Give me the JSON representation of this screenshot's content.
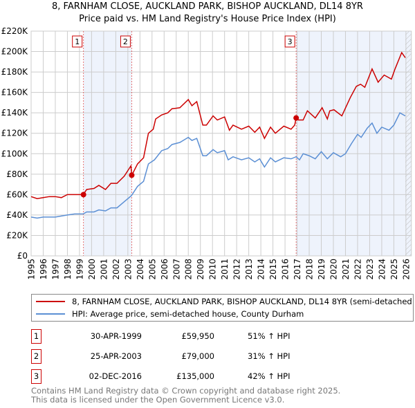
{
  "chart_data": {
    "type": "line",
    "title": "8, FARNHAM CLOSE, AUCKLAND PARK, BISHOP AUCKLAND, DL14 8YR",
    "subtitle": "Price paid vs. HM Land Registry's House Price Index (HPI)",
    "xlim": [
      1995,
      2026.45
    ],
    "ylim": [
      0,
      220000
    ],
    "x_ticks": [
      "1995",
      "1996",
      "1997",
      "1998",
      "1999",
      "2000",
      "2001",
      "2002",
      "2003",
      "2004",
      "2005",
      "2006",
      "2007",
      "2008",
      "2009",
      "2010",
      "2011",
      "2012",
      "2013",
      "2014",
      "2015",
      "2016",
      "2017",
      "2018",
      "2019",
      "2020",
      "2021",
      "2022",
      "2023",
      "2024",
      "2025",
      "2026"
    ],
    "y_ticks": [
      {
        "v": 0,
        "label": "£0"
      },
      {
        "v": 20000,
        "label": "£20K"
      },
      {
        "v": 40000,
        "label": "£40K"
      },
      {
        "v": 60000,
        "label": "£60K"
      },
      {
        "v": 80000,
        "label": "£80K"
      },
      {
        "v": 100000,
        "label": "£100K"
      },
      {
        "v": 120000,
        "label": "£120K"
      },
      {
        "v": 140000,
        "label": "£140K"
      },
      {
        "v": 160000,
        "label": "£160K"
      },
      {
        "v": 180000,
        "label": "£180K"
      },
      {
        "v": 200000,
        "label": "£200K"
      },
      {
        "v": 220000,
        "label": "£220K"
      }
    ],
    "grid": true,
    "series": [
      {
        "name": "8, FARNHAM CLOSE, AUCKLAND PARK, BISHOP AUCKLAND, DL14 8YR (semi-detached house)",
        "color": "#cc0000",
        "points": [
          [
            1995,
            58
          ],
          [
            1995.5,
            56
          ],
          [
            1996,
            57
          ],
          [
            1996.5,
            58
          ],
          [
            1997,
            58
          ],
          [
            1997.5,
            57
          ],
          [
            1998,
            60
          ],
          [
            1998.6,
            60
          ],
          [
            1999.3,
            60
          ],
          [
            1999.6,
            65
          ],
          [
            2000.2,
            66
          ],
          [
            2000.6,
            69
          ],
          [
            2001.15,
            65
          ],
          [
            2001.6,
            71
          ],
          [
            2002.1,
            71
          ],
          [
            2002.7,
            78
          ],
          [
            2003.25,
            88
          ],
          [
            2003.33,
            79
          ],
          [
            2003.8,
            90
          ],
          [
            2004.3,
            96
          ],
          [
            2004.7,
            120
          ],
          [
            2005.1,
            124
          ],
          [
            2005.3,
            134
          ],
          [
            2005.8,
            138
          ],
          [
            2006.3,
            140
          ],
          [
            2006.65,
            144
          ],
          [
            2007.3,
            145
          ],
          [
            2008.0,
            153
          ],
          [
            2008.3,
            147
          ],
          [
            2008.7,
            151
          ],
          [
            2009.2,
            128
          ],
          [
            2009.5,
            128
          ],
          [
            2010.05,
            137
          ],
          [
            2010.4,
            133
          ],
          [
            2011.0,
            136
          ],
          [
            2011.4,
            123
          ],
          [
            2011.7,
            128
          ],
          [
            2012.4,
            124
          ],
          [
            2013.0,
            127
          ],
          [
            2013.5,
            121
          ],
          [
            2013.9,
            126
          ],
          [
            2014.3,
            115
          ],
          [
            2014.8,
            126
          ],
          [
            2015.2,
            120
          ],
          [
            2015.9,
            127
          ],
          [
            2016.5,
            124
          ],
          [
            2016.8,
            128
          ],
          [
            2016.92,
            135
          ],
          [
            2017.1,
            133
          ],
          [
            2017.5,
            133
          ],
          [
            2017.85,
            142
          ],
          [
            2018.5,
            135
          ],
          [
            2019.07,
            145
          ],
          [
            2019.5,
            134
          ],
          [
            2019.7,
            142
          ],
          [
            2020.05,
            143
          ],
          [
            2020.7,
            137
          ],
          [
            2021.4,
            155
          ],
          [
            2021.9,
            166
          ],
          [
            2022.25,
            168
          ],
          [
            2022.6,
            165
          ],
          [
            2023.2,
            183
          ],
          [
            2023.7,
            170
          ],
          [
            2024.2,
            177
          ],
          [
            2024.8,
            173
          ],
          [
            2025.1,
            183
          ],
          [
            2025.65,
            199
          ],
          [
            2025.95,
            194
          ]
        ]
      },
      {
        "name": "HPI: Average price, semi-detached house, County Durham",
        "color": "#5b8fd4",
        "points": [
          [
            1995,
            38
          ],
          [
            1995.5,
            37
          ],
          [
            1996,
            38
          ],
          [
            1996.5,
            38
          ],
          [
            1997,
            38
          ],
          [
            1997.5,
            39
          ],
          [
            1998,
            40
          ],
          [
            1998.6,
            41
          ],
          [
            1999.3,
            41
          ],
          [
            1999.6,
            43
          ],
          [
            2000.2,
            43
          ],
          [
            2000.6,
            45
          ],
          [
            2001.15,
            44
          ],
          [
            2001.6,
            47
          ],
          [
            2002.1,
            47
          ],
          [
            2002.7,
            53
          ],
          [
            2003.3,
            59
          ],
          [
            2003.8,
            68
          ],
          [
            2004.3,
            73
          ],
          [
            2004.7,
            90
          ],
          [
            2005.2,
            94
          ],
          [
            2005.8,
            103
          ],
          [
            2006.3,
            105
          ],
          [
            2006.65,
            109
          ],
          [
            2007.3,
            111
          ],
          [
            2008.0,
            116
          ],
          [
            2008.3,
            113
          ],
          [
            2008.7,
            115
          ],
          [
            2009.2,
            98
          ],
          [
            2009.5,
            98
          ],
          [
            2010.05,
            104
          ],
          [
            2010.4,
            101
          ],
          [
            2011.0,
            103
          ],
          [
            2011.3,
            94
          ],
          [
            2011.7,
            97
          ],
          [
            2012.4,
            94
          ],
          [
            2013.0,
            96
          ],
          [
            2013.5,
            92
          ],
          [
            2013.9,
            95
          ],
          [
            2014.3,
            87
          ],
          [
            2014.8,
            96
          ],
          [
            2015.2,
            92
          ],
          [
            2015.9,
            96
          ],
          [
            2016.5,
            95
          ],
          [
            2016.92,
            97
          ],
          [
            2017.2,
            94
          ],
          [
            2017.5,
            100
          ],
          [
            2018.0,
            98
          ],
          [
            2018.5,
            95
          ],
          [
            2019.0,
            102
          ],
          [
            2019.5,
            95
          ],
          [
            2020.0,
            101
          ],
          [
            2020.6,
            97
          ],
          [
            2021.0,
            100
          ],
          [
            2021.5,
            110
          ],
          [
            2022.0,
            119
          ],
          [
            2022.3,
            116
          ],
          [
            2022.8,
            125
          ],
          [
            2023.2,
            130
          ],
          [
            2023.6,
            120
          ],
          [
            2024.0,
            126
          ],
          [
            2024.6,
            123
          ],
          [
            2025.0,
            128
          ],
          [
            2025.5,
            140
          ],
          [
            2025.95,
            137
          ]
        ]
      }
    ],
    "sales": [
      {
        "id": "1",
        "x": 1999.33,
        "y": 59950,
        "date": "30-APR-1999",
        "price": "£59,950",
        "hpi": "51% ↑ HPI"
      },
      {
        "id": "2",
        "x": 2003.32,
        "y": 79000,
        "date": "25-APR-2003",
        "price": "£79,000",
        "hpi": "31% ↑ HPI"
      },
      {
        "id": "3",
        "x": 2016.92,
        "y": 135000,
        "date": "02-DEC-2016",
        "price": "£135,000",
        "hpi": "42% ↑ HPI"
      }
    ],
    "shaded_ranges": [
      [
        1999.33,
        2003.32
      ],
      [
        2016.92,
        2026.45
      ]
    ],
    "hatched_from": 2025.95
  },
  "footer": [
    "Contains HM Land Registry data © Crown copyright and database right 2025.",
    "This data is licensed under the Open Government Licence v3.0."
  ]
}
